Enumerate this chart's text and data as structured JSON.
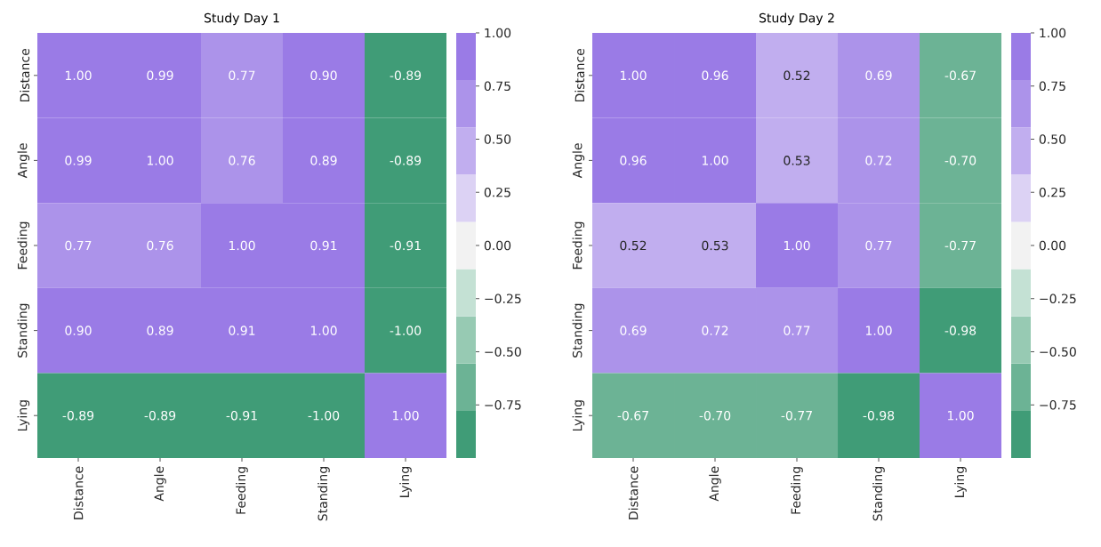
{
  "chart_data": [
    {
      "type": "heatmap",
      "title": "Study Day 1",
      "categories": [
        "Distance",
        "Angle",
        "Feeding",
        "Standing",
        "Lying"
      ],
      "y_categories": [
        "Distance",
        "Angle",
        "Feeding",
        "Standing",
        "Lying"
      ],
      "cells": [
        [
          1.0,
          0.99,
          0.77,
          0.9,
          -0.89
        ],
        [
          0.99,
          1.0,
          0.76,
          0.89,
          -0.89
        ],
        [
          0.77,
          0.76,
          1.0,
          0.91,
          -0.91
        ],
        [
          0.9,
          0.89,
          0.91,
          1.0,
          -1.0
        ],
        [
          -0.89,
          -0.89,
          -0.91,
          -1.0,
          1.0
        ]
      ],
      "cell_labels": [
        [
          "1.00",
          "0.99",
          "0.77",
          "0.90",
          "-0.89"
        ],
        [
          "0.99",
          "1.00",
          "0.76",
          "0.89",
          "-0.89"
        ],
        [
          "0.77",
          "0.76",
          "1.00",
          "0.91",
          "-0.91"
        ],
        [
          "0.90",
          "0.89",
          "0.91",
          "1.00",
          "-1.00"
        ],
        [
          "-0.89",
          "-0.89",
          "-0.91",
          "-1.00",
          "1.00"
        ]
      ],
      "colors": [
        "#409c77",
        "#6cb395",
        "#97cab3",
        "#c4e1d4",
        "#f2f2f2",
        "#dcd2f4",
        "#c1aeef",
        "#ac93ea",
        "#9a7be6"
      ],
      "clim": [
        -1,
        1
      ],
      "cticks": [
        {
          "value": 1,
          "label": "1.00"
        },
        {
          "value": 0.75,
          "label": "0.75"
        },
        {
          "value": 0.5,
          "label": "0.50"
        },
        {
          "value": 0.25,
          "label": "0.25"
        },
        {
          "value": 0,
          "label": "0.00"
        },
        {
          "value": -0.25,
          "label": "−0.25"
        },
        {
          "value": -0.5,
          "label": "−0.50"
        },
        {
          "value": -0.75,
          "label": "−0.75"
        }
      ]
    },
    {
      "type": "heatmap",
      "title": "Study Day 2",
      "categories": [
        "Distance",
        "Angle",
        "Feeding",
        "Standing",
        "Lying"
      ],
      "y_categories": [
        "Distance",
        "Angle",
        "Feeding",
        "Standing",
        "Lying"
      ],
      "cells": [
        [
          1.0,
          0.96,
          0.52,
          0.69,
          -0.67
        ],
        [
          0.96,
          1.0,
          0.53,
          0.72,
          -0.7
        ],
        [
          0.52,
          0.53,
          1.0,
          0.77,
          -0.77
        ],
        [
          0.69,
          0.72,
          0.77,
          1.0,
          -0.98
        ],
        [
          -0.67,
          -0.7,
          -0.77,
          -0.98,
          1.0
        ]
      ],
      "cell_labels": [
        [
          "1.00",
          "0.96",
          "0.52",
          "0.69",
          "-0.67"
        ],
        [
          "0.96",
          "1.00",
          "0.53",
          "0.72",
          "-0.70"
        ],
        [
          "0.52",
          "0.53",
          "1.00",
          "0.77",
          "-0.77"
        ],
        [
          "0.69",
          "0.72",
          "0.77",
          "1.00",
          "-0.98"
        ],
        [
          "-0.67",
          "-0.70",
          "-0.77",
          "-0.98",
          "1.00"
        ]
      ],
      "colors": [
        "#409c77",
        "#6cb395",
        "#97cab3",
        "#c4e1d4",
        "#f2f2f2",
        "#dcd2f4",
        "#c1aeef",
        "#ac93ea",
        "#9a7be6"
      ],
      "clim": [
        -1,
        1
      ],
      "cticks": [
        {
          "value": 1,
          "label": "1.00"
        },
        {
          "value": 0.75,
          "label": "0.75"
        },
        {
          "value": 0.5,
          "label": "0.50"
        },
        {
          "value": 0.25,
          "label": "0.25"
        },
        {
          "value": 0,
          "label": "0.00"
        },
        {
          "value": -0.25,
          "label": "−0.25"
        },
        {
          "value": -0.5,
          "label": "−0.50"
        },
        {
          "value": -0.75,
          "label": "−0.75"
        }
      ]
    }
  ]
}
